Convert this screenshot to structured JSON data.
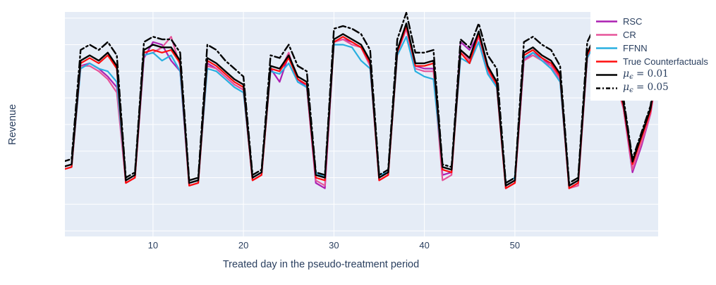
{
  "page": {
    "background": "#ffffff",
    "text_color": "#2a3f5f"
  },
  "legend": {
    "items": [
      {
        "label": "RSC",
        "color": "#ab20b2",
        "dash": "none"
      },
      {
        "label": "CR",
        "color": "#e6549a",
        "dash": "none"
      },
      {
        "label": "FFNN",
        "color": "#29afe0",
        "dash": "none"
      },
      {
        "label": "True Counterfactuals",
        "color": "#ff0e0e",
        "dash": "none"
      },
      {
        "label_mu": "μ",
        "label_sub": "ϵ",
        "label_eq": " = 0.01",
        "color": "#000000",
        "dash": "none"
      },
      {
        "label_mu": "μ",
        "label_sub": "ϵ",
        "label_eq": " = 0.05",
        "color": "#000000",
        "dash": "6 3 2 3"
      }
    ]
  },
  "chart_data": {
    "type": "line",
    "title": "",
    "xlabel": "Treated day in the pseudo-treatment period",
    "ylabel": "Revenue",
    "plot_bgcolor": "#e5ecf6",
    "grid_color": "#ffffff",
    "grid_on": true,
    "legend_position": "top-right",
    "xaxis": {
      "range": [
        0.26,
        65.84
      ],
      "tickvals": [
        10,
        20,
        30,
        40,
        50
      ],
      "ticklabels": [
        "10",
        "20",
        "30",
        "40",
        "50"
      ],
      "showticklabels": true
    },
    "yaxis": {
      "range": [
        7.9,
        92.3
      ],
      "gridvals": [
        10,
        20,
        30,
        40,
        50,
        60,
        70,
        80,
        90
      ],
      "showticklabels": false
    },
    "x_description": "Day index 0-66; weekly pattern with 5 high days then 2 low days",
    "x": [
      0,
      1,
      2,
      3,
      4,
      5,
      6,
      7,
      8,
      9,
      10,
      11,
      12,
      13,
      14,
      15,
      16,
      17,
      18,
      19,
      20,
      21,
      22,
      23,
      24,
      25,
      26,
      27,
      28,
      29,
      30,
      31,
      32,
      33,
      34,
      35,
      36,
      37,
      38,
      39,
      40,
      41,
      42,
      43,
      44,
      45,
      46,
      47,
      48,
      49,
      50,
      51,
      52,
      53,
      54,
      55,
      56,
      57,
      58,
      59,
      60,
      61,
      62,
      63,
      64,
      65,
      66
    ],
    "series": [
      {
        "name": "RSC",
        "color": "#ab20b2",
        "dash": "none",
        "width": 2.2,
        "values": [
          33,
          34,
          72,
          73,
          71,
          68,
          64,
          28,
          30,
          75,
          81,
          80,
          74,
          70,
          27,
          28,
          73,
          71,
          68,
          65,
          63,
          29,
          31,
          71,
          66,
          76,
          67,
          64,
          28,
          26,
          81,
          82,
          81,
          79,
          72,
          29,
          31,
          77,
          86,
          72,
          71,
          71,
          31,
          32,
          81,
          78,
          84,
          70,
          65,
          26,
          28,
          74,
          77,
          75,
          72,
          67,
          26,
          28,
          75,
          83,
          81,
          69,
          56,
          32,
          42,
          54,
          76
        ]
      },
      {
        "name": "CR",
        "color": "#e6549a",
        "dash": "none",
        "width": 2.2,
        "values": [
          33,
          34,
          72,
          72,
          70,
          67,
          62,
          28,
          30,
          76,
          77,
          79,
          83,
          72,
          27,
          28,
          72,
          71,
          68,
          65,
          63,
          29,
          31,
          71,
          70,
          77,
          66,
          64,
          29,
          27,
          81,
          82,
          80,
          79,
          72,
          29,
          31,
          77,
          86,
          71,
          70,
          70,
          29,
          31,
          78,
          74,
          83,
          70,
          64,
          26,
          28,
          74,
          76,
          74,
          72,
          67,
          26,
          27,
          75,
          82,
          80,
          68,
          56,
          33,
          43,
          54,
          76
        ]
      },
      {
        "name": "FFNN",
        "color": "#29afe0",
        "dash": "none",
        "width": 2.2,
        "values": [
          33,
          34,
          71,
          73,
          71,
          70,
          66,
          29,
          31,
          76,
          77,
          74,
          76,
          70,
          28,
          29,
          71,
          70,
          67,
          64,
          62,
          30,
          32,
          70,
          69,
          73,
          66,
          64,
          32,
          30,
          80,
          80,
          79,
          74,
          71,
          31,
          32,
          76,
          83,
          70,
          68,
          67,
          34,
          33,
          75,
          73,
          81,
          69,
          64,
          28,
          30,
          75,
          77,
          74,
          71,
          66,
          27,
          29,
          75,
          82,
          80,
          68,
          57,
          36,
          46,
          56,
          76
        ]
      },
      {
        "name": "True Counterfactuals",
        "color": "#ff0e0e",
        "dash": "none",
        "width": 2.2,
        "values": [
          33,
          34,
          73,
          75,
          73,
          76,
          71,
          28,
          30,
          77,
          78,
          77,
          78,
          73,
          27,
          28,
          74,
          72,
          69,
          66,
          64,
          29,
          31,
          71,
          70,
          75,
          67,
          65,
          30,
          29,
          81,
          83,
          81,
          79,
          73,
          29,
          31,
          77,
          87,
          72,
          72,
          73,
          33,
          32,
          77,
          73,
          84,
          71,
          65,
          26,
          28,
          76,
          78,
          75,
          73,
          68,
          26,
          28,
          76,
          83,
          81,
          69,
          57,
          35,
          45,
          55,
          77
        ]
      },
      {
        "name": "mu_eps = 0.01",
        "color": "#000000",
        "dash": "none",
        "width": 2.4,
        "values": [
          34,
          35,
          74,
          76,
          74,
          77,
          72,
          29,
          31,
          78,
          80,
          79,
          79,
          74,
          28,
          29,
          75,
          73,
          70,
          67,
          65,
          30,
          32,
          72,
          71,
          76,
          68,
          66,
          31,
          30,
          82,
          84,
          82,
          80,
          74,
          30,
          32,
          78,
          88,
          73,
          73,
          74,
          34,
          33,
          78,
          75,
          85,
          72,
          66,
          27,
          29,
          77,
          79,
          76,
          74,
          69,
          27,
          29,
          77,
          84,
          82,
          70,
          58,
          36,
          46,
          56,
          78
        ]
      },
      {
        "name": "mu_eps = 0.05",
        "color": "#000000",
        "dash": "10 4 2.5 4",
        "width": 2.4,
        "values": [
          36,
          37,
          78,
          80,
          78,
          81,
          76,
          30,
          32,
          81,
          83,
          82,
          82,
          77,
          29,
          30,
          80,
          78,
          74,
          71,
          68,
          31,
          33,
          76,
          75,
          80,
          72,
          70,
          32,
          31,
          86,
          87,
          86,
          84,
          78,
          31,
          33,
          82,
          92,
          77,
          77,
          78,
          35,
          34,
          82,
          79,
          88,
          76,
          71,
          28,
          30,
          81,
          83,
          80,
          78,
          72,
          28,
          30,
          81,
          88,
          86,
          74,
          60,
          37,
          47,
          57,
          80
        ]
      }
    ]
  }
}
